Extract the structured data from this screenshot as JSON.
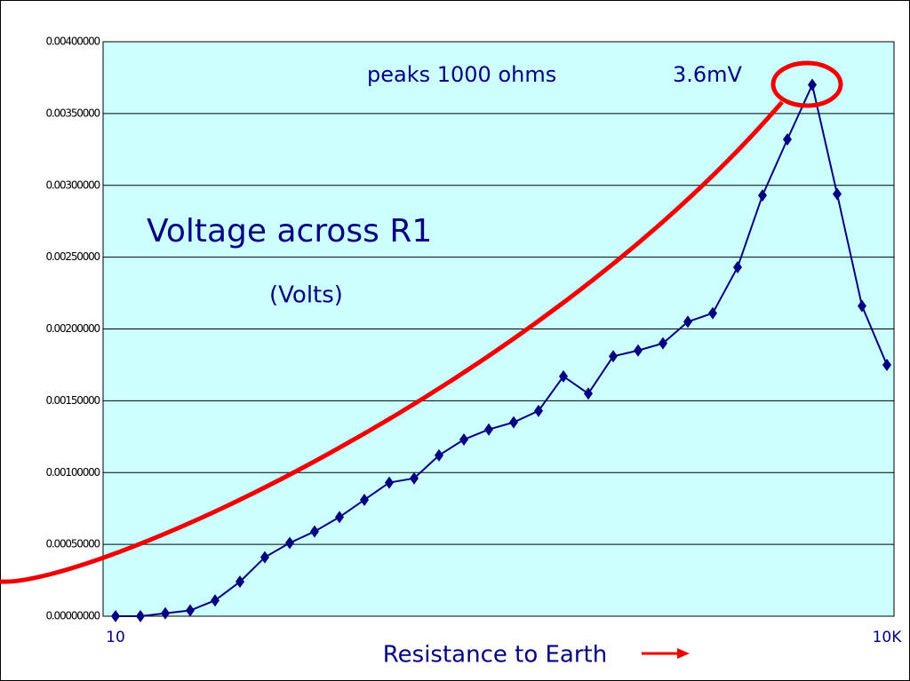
{
  "chart_data": {
    "type": "line",
    "annotations": [
      "peaks 1000 ohms",
      "3.6mV",
      "Voltage across R1",
      "(Volts)"
    ],
    "xlabel": "Resistance to Earth",
    "categories": [
      "10",
      null,
      null,
      null,
      null,
      null,
      null,
      null,
      null,
      null,
      null,
      null,
      null,
      null,
      null,
      null,
      null,
      null,
      null,
      null,
      null,
      null,
      null,
      null,
      null,
      null,
      null,
      null,
      null,
      null,
      null,
      "10K"
    ],
    "series": [
      {
        "name": "Voltage across R1",
        "color": "#000080",
        "values": [
          0.0,
          0.0,
          2e-05,
          4e-05,
          0.00011,
          0.00024,
          0.00041,
          0.00051,
          0.00059,
          0.00069,
          0.00081,
          0.00093,
          0.00096,
          0.00112,
          0.00123,
          0.0013,
          0.00135,
          0.00143,
          0.00167,
          0.00155,
          0.00181,
          0.00185,
          0.0019,
          0.00205,
          0.00211,
          0.00243,
          0.00293,
          0.00332,
          0.0037,
          0.00294,
          0.00216,
          0.00175
        ]
      }
    ],
    "ylim": [
      0,
      0.004
    ],
    "yticks": [
      {
        "value": 0,
        "label": "0.00000000"
      },
      {
        "value": 0.0005,
        "label": "0.00050000"
      },
      {
        "value": 0.001,
        "label": "0.00100000"
      },
      {
        "value": 0.0015,
        "label": "0.00150000"
      },
      {
        "value": 0.002,
        "label": "0.00200000"
      },
      {
        "value": 0.0025,
        "label": "0.00250000"
      },
      {
        "value": 0.003,
        "label": "0.00300000"
      },
      {
        "value": 0.0035,
        "label": "0.00350000"
      },
      {
        "value": 0.004,
        "label": "0.00400000"
      }
    ],
    "grid": true,
    "background": "#ccffff"
  }
}
